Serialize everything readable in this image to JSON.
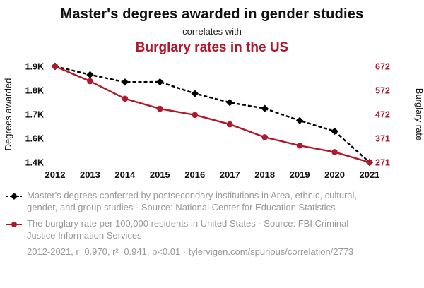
{
  "header": {
    "title": "Master's degrees awarded in gender studies",
    "subtitle": "correlates with",
    "title2": "Burglary rates in the US"
  },
  "chart_data": {
    "type": "line",
    "x_labels": [
      "2012",
      "2013",
      "2014",
      "2015",
      "2016",
      "2017",
      "2018",
      "2019",
      "2020",
      "2021"
    ],
    "left_axis": {
      "label": "Degrees awarded",
      "tick_labels": [
        "1.9K",
        "1.8K",
        "1.7K",
        "1.6K",
        "1.4K"
      ],
      "range": [
        1407,
        1901
      ],
      "color": "#111111"
    },
    "right_axis": {
      "label": "Burglary rate",
      "tick_labels": [
        "672",
        "572",
        "472",
        "371",
        "271"
      ],
      "range": [
        271,
        672
      ],
      "color": "#b2182b"
    },
    "grid": false,
    "legend_position": "below",
    "series": [
      {
        "id": "degrees",
        "name": "Master's degrees conferred by postsecondary institutions in Area, ethnic, cultural, gender, and group studies",
        "axis": "left",
        "color": "#000000",
        "line_style": "dashed",
        "marker": "diamond",
        "values": [
          1901,
          1858,
          1820,
          1821,
          1761,
          1715,
          1684,
          1622,
          1567,
          1407
        ]
      },
      {
        "id": "burglary",
        "name": "The burglary rate per 100,000 residents in United States",
        "axis": "right",
        "color": "#b2182b",
        "line_style": "solid",
        "marker": "circle",
        "values": [
          672,
          610,
          537,
          495,
          469,
          430,
          376,
          341,
          314,
          271
        ]
      }
    ]
  },
  "legend": {
    "items": [
      {
        "icon": "diamond-dashed-line-icon",
        "color": "#000000",
        "text": "Master's degrees conferred by postsecondary institutions in Area, ethnic, cultural, gender, and group studies · Source: National Center for Education Statistics"
      },
      {
        "icon": "circle-solid-line-icon",
        "color": "#b2182b",
        "text": "The burglary rate per 100,000 residents in United States · Source: FBI Criminal Justice Information Services"
      }
    ],
    "stats": "2012-2021, r=0.970, r²=0.941, p<0.01 · tylervigen.com/spurious/correlation/2773"
  },
  "colors": {
    "accent_red": "#b2182b",
    "legend_gray": "#989898"
  }
}
